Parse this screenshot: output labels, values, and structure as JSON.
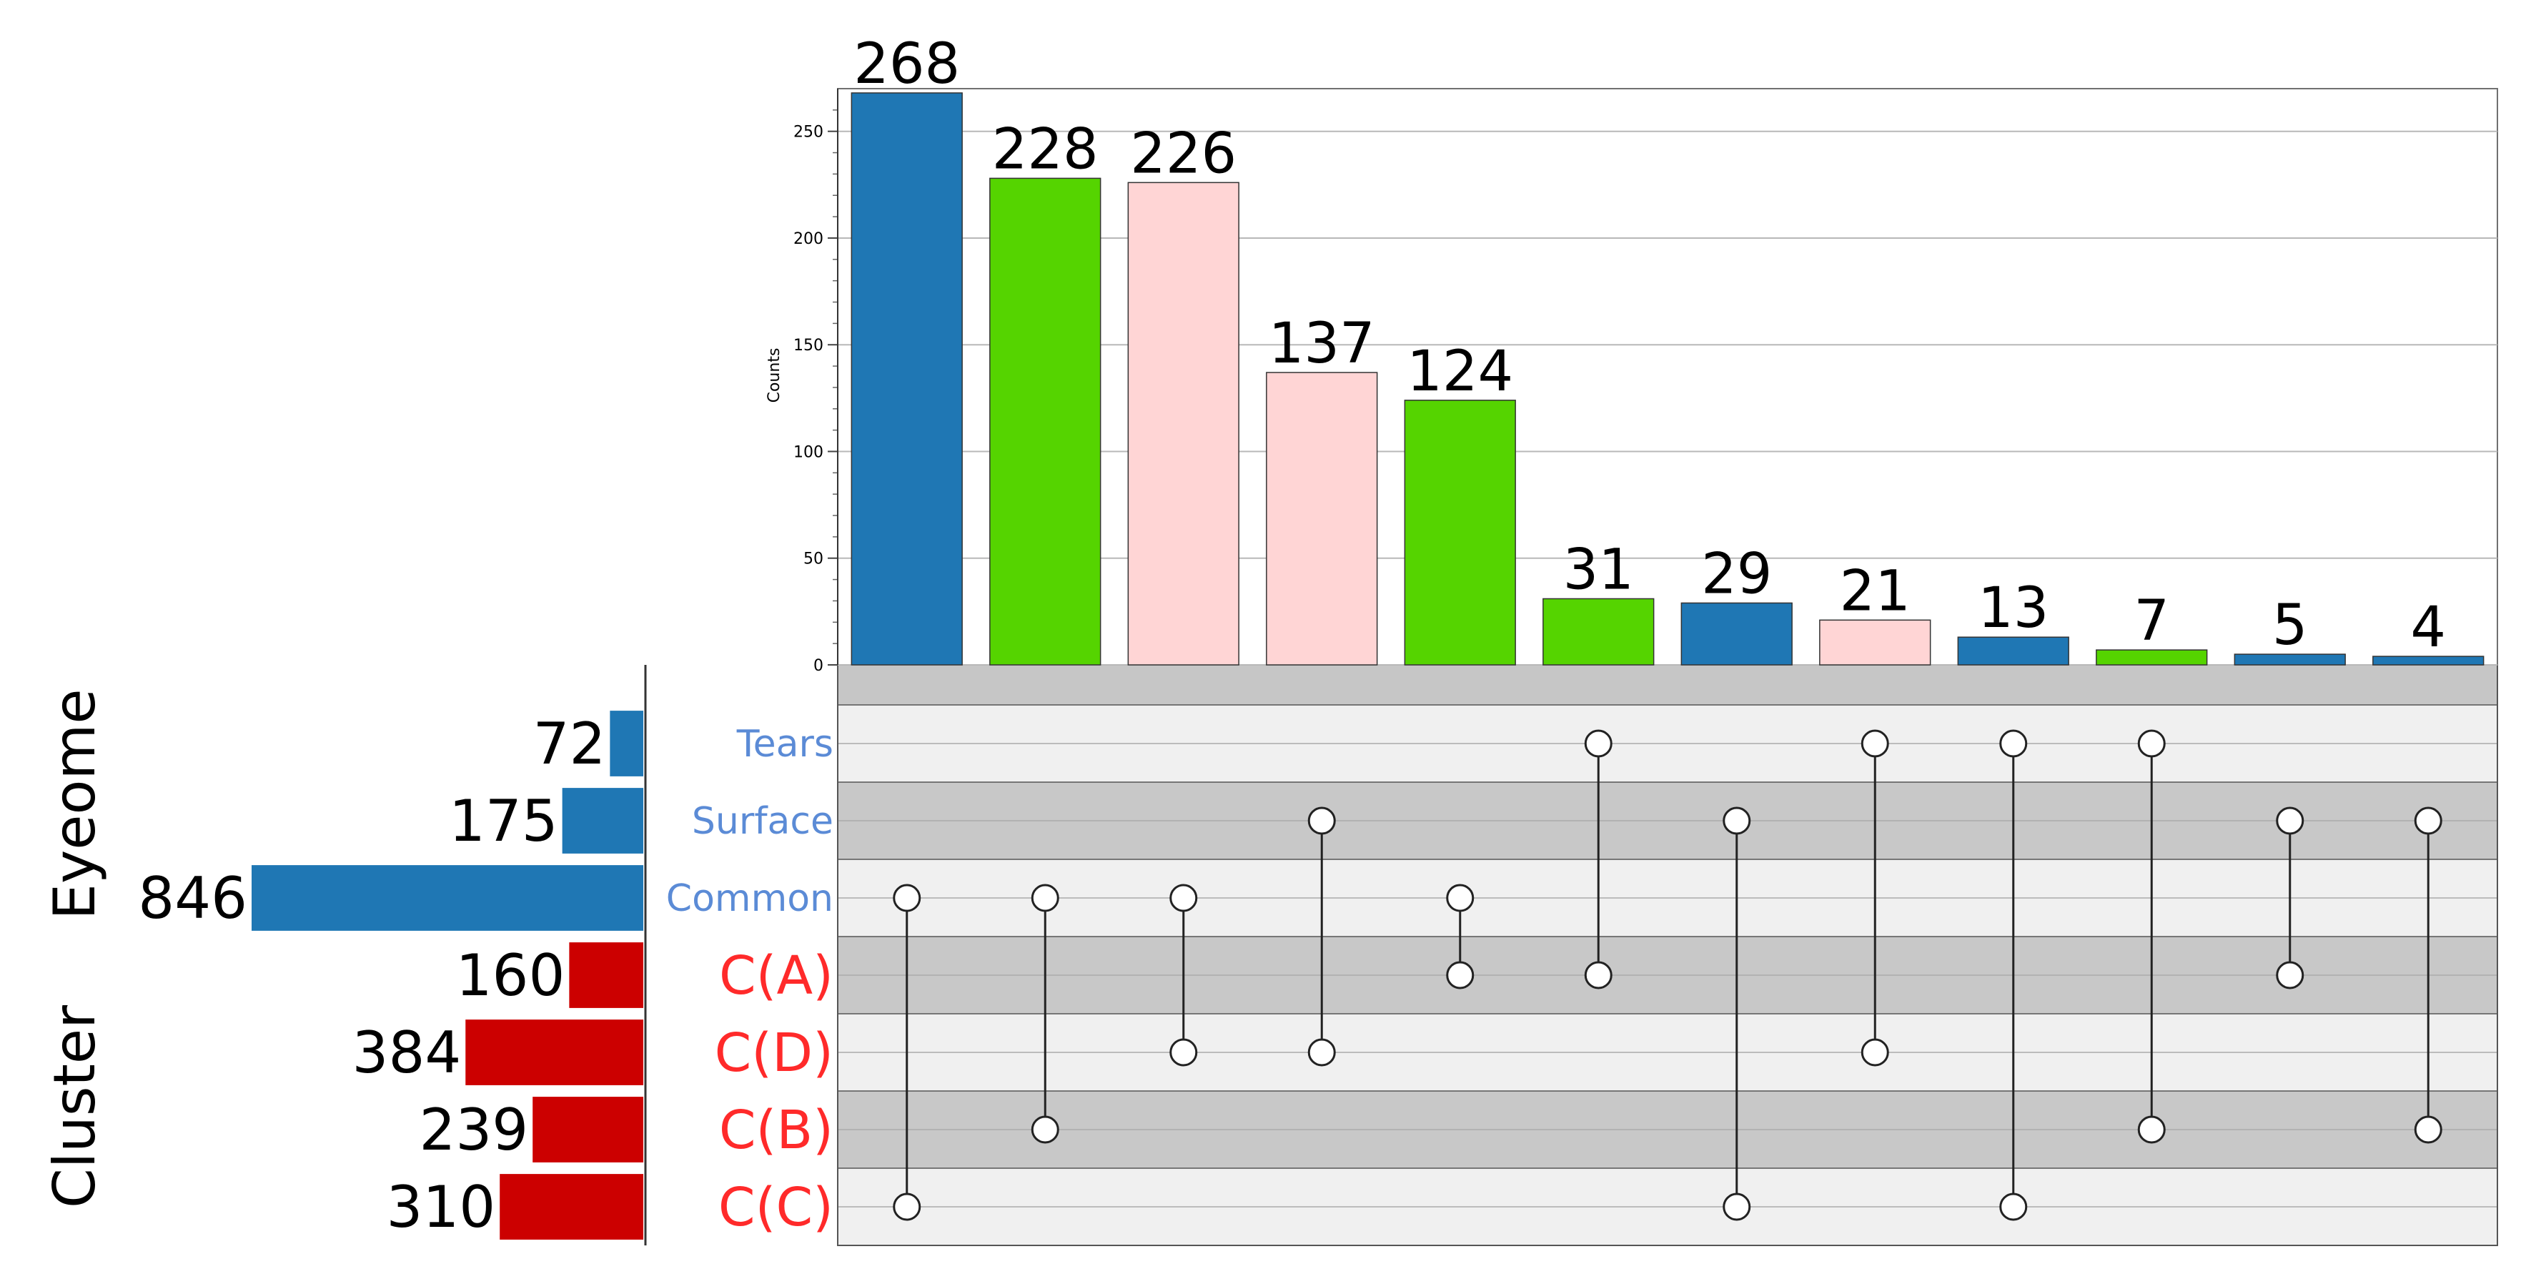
{
  "chart_data": {
    "type": "bar",
    "subtype": "upset",
    "ylabel": "Counts",
    "ylim": [
      0,
      270
    ],
    "yticks": [
      0,
      50,
      100,
      150,
      200,
      250
    ],
    "grid": true,
    "group_labels": [
      "Eyeome",
      "Cluster"
    ],
    "sets": [
      {
        "name": "Tears",
        "size": 72,
        "group": "Eyeome"
      },
      {
        "name": "Surface",
        "size": 175,
        "group": "Eyeome"
      },
      {
        "name": "Common",
        "size": 846,
        "group": "Eyeome"
      },
      {
        "name": "C(A)",
        "size": 160,
        "group": "Cluster"
      },
      {
        "name": "C(D)",
        "size": 384,
        "group": "Cluster"
      },
      {
        "name": "C(B)",
        "size": 239,
        "group": "Cluster"
      },
      {
        "name": "C(C)",
        "size": 310,
        "group": "Cluster"
      }
    ],
    "intersections": [
      {
        "value": 268,
        "sets": [
          "Common",
          "C(C)"
        ],
        "color": "#1f77b4"
      },
      {
        "value": 228,
        "sets": [
          "Common",
          "C(B)"
        ],
        "color": "#55d400"
      },
      {
        "value": 226,
        "sets": [
          "Common",
          "C(D)"
        ],
        "color": "#ffd5d5"
      },
      {
        "value": 137,
        "sets": [
          "Surface",
          "C(D)"
        ],
        "color": "#ffd5d5"
      },
      {
        "value": 124,
        "sets": [
          "Common",
          "C(A)"
        ],
        "color": "#55d400"
      },
      {
        "value": 31,
        "sets": [
          "Tears",
          "C(A)"
        ],
        "color": "#55d400"
      },
      {
        "value": 29,
        "sets": [
          "Surface",
          "C(C)"
        ],
        "color": "#1f77b4"
      },
      {
        "value": 21,
        "sets": [
          "Tears",
          "C(D)"
        ],
        "color": "#ffd5d5"
      },
      {
        "value": 13,
        "sets": [
          "Tears",
          "C(C)"
        ],
        "color": "#1f77b4"
      },
      {
        "value": 7,
        "sets": [
          "Tears",
          "C(B)"
        ],
        "color": "#55d400"
      },
      {
        "value": 5,
        "sets": [
          "Surface",
          "C(A)"
        ],
        "color": "#1f77b4"
      },
      {
        "value": 4,
        "sets": [
          "Surface",
          "C(B)"
        ],
        "color": "#1f77b4"
      }
    ],
    "colors": {
      "eyeome_set": "#1f77b4",
      "cluster_set": "#cc0000",
      "eyeome_label": "#5b8bd6",
      "cluster_label": "#ff2a2a"
    }
  }
}
